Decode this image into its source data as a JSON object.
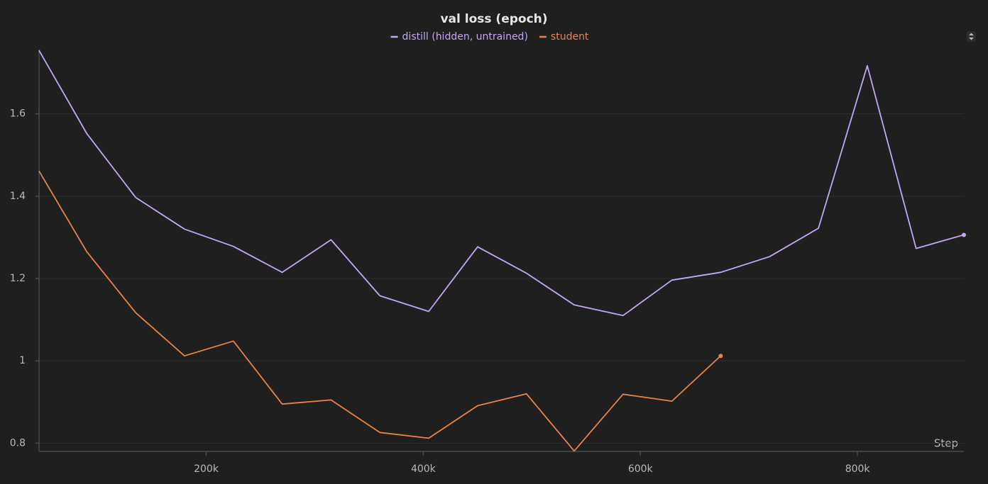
{
  "chart_data": {
    "type": "line",
    "title": "val loss (epoch)",
    "x_label": "Step",
    "x": [
      46000,
      90000,
      135000,
      180000,
      225000,
      270000,
      315000,
      360000,
      405000,
      450000,
      495000,
      539000,
      584000,
      629000,
      674000,
      719000,
      764000,
      809000,
      854000,
      898000
    ],
    "series": [
      {
        "name": "distill (hidden, untrained)",
        "color": "#c4a6f6",
        "values": [
          1.754,
          1.552,
          1.397,
          1.32,
          1.278,
          1.215,
          1.294,
          1.158,
          1.12,
          1.277,
          1.213,
          1.136,
          1.11,
          1.196,
          1.215,
          1.253,
          1.322,
          1.717,
          1.273,
          1.306
        ]
      },
      {
        "name": "student",
        "color": "#e8834a",
        "values": [
          1.461,
          1.265,
          1.117,
          1.012,
          1.048,
          0.895,
          0.905,
          0.826,
          0.812,
          0.891,
          0.92,
          0.781,
          0.919,
          0.902,
          1.012,
          null,
          null,
          null,
          null,
          null
        ]
      }
    ],
    "xlim": [
      46000,
      898000
    ],
    "xticks": [
      {
        "value": 200000,
        "label": "200k"
      },
      {
        "value": 400000,
        "label": "400k"
      },
      {
        "value": 600000,
        "label": "600k"
      },
      {
        "value": 800000,
        "label": "800k"
      }
    ],
    "ylim": [
      0.78,
      1.775
    ],
    "yticks": [
      0.8,
      1,
      1.2,
      1.4,
      1.6
    ],
    "grid": true
  }
}
